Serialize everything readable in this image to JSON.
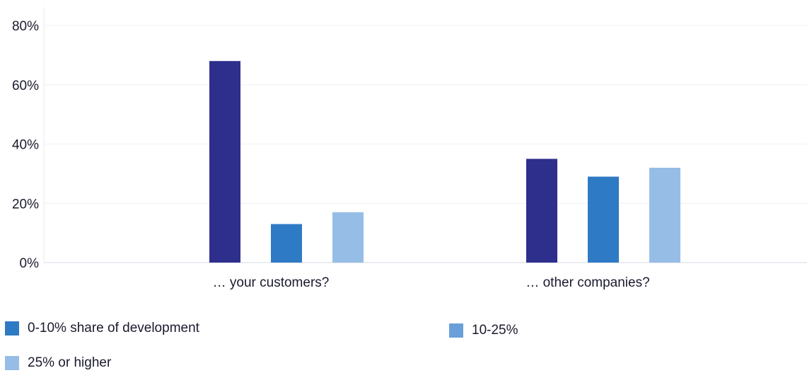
{
  "chart_data": {
    "type": "bar",
    "categories": [
      "… your customers?",
      "… other companies?"
    ],
    "series": [
      {
        "color": "#2e2e8c",
        "values": [
          68,
          35
        ]
      },
      {
        "name": "0-10% share of development",
        "color": "#2f7ac4",
        "values": [
          13,
          29
        ]
      },
      {
        "name": "10-25%",
        "color": "#6a9fda"
      },
      {
        "name": "25% or higher",
        "color": "#96bde6",
        "values": [
          17,
          32
        ]
      }
    ],
    "y_ticks": [
      "0%",
      "20%",
      "40%",
      "60%",
      "80%"
    ],
    "ylim": [
      0,
      80
    ],
    "grid": true,
    "legend_position": "bottom"
  }
}
